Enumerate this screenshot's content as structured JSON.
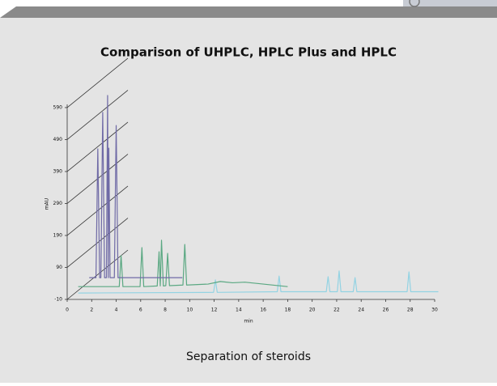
{
  "chart_data": {
    "type": "line",
    "title": "Comparison of UHPLC, HPLC Plus and HPLC",
    "caption": "Separation of steroids",
    "x_label": "min",
    "y_label": "mAU",
    "xlim": [
      0,
      30
    ],
    "xticks": [
      0,
      2,
      4,
      6,
      8,
      10,
      12,
      14,
      16,
      18,
      20,
      22,
      24,
      26,
      28,
      30
    ],
    "ylim": [
      -10,
      600
    ],
    "yticks": [
      -10,
      90,
      190,
      290,
      390,
      490,
      590
    ],
    "series": [
      {
        "color": "#93d3e3",
        "x": [
          0.9,
          11.95,
          12.1,
          12.25,
          17.15,
          17.3,
          17.45,
          21.15,
          21.3,
          21.45,
          22.05,
          22.2,
          22.35,
          23.35,
          23.5,
          23.65,
          27.75,
          27.9,
          28.05,
          30.3
        ],
        "values": [
          10,
          12,
          51,
          12,
          14,
          63,
          14,
          14,
          61,
          14,
          14,
          79,
          14,
          14,
          58,
          14,
          14,
          76,
          14,
          14
        ]
      },
      {
        "color": "#5aa882",
        "x": [
          0.9,
          4.25,
          4.4,
          4.55,
          5.95,
          6.1,
          6.25,
          7.35,
          7.5,
          7.6,
          7.7,
          7.85,
          8.05,
          8.2,
          8.35,
          9.45,
          9.6,
          9.75,
          11.5,
          12.5,
          13.5,
          14.5,
          18.0
        ],
        "values": [
          30,
          30,
          127,
          30,
          30,
          152,
          30,
          32,
          139,
          32,
          175,
          32,
          33,
          134,
          33,
          35,
          162,
          35,
          38,
          46,
          42,
          44,
          30
        ]
      },
      {
        "color": "#6f6aa6",
        "x": [
          1.8,
          2.35,
          2.5,
          2.65,
          2.75,
          2.9,
          3.05,
          3.2,
          3.3,
          3.35,
          3.4,
          3.5,
          3.85,
          4.0,
          4.15,
          9.4
        ],
        "values": [
          58,
          58,
          461,
          58,
          58,
          575,
          58,
          58,
          628,
          58,
          463,
          58,
          58,
          534,
          58,
          58
        ]
      }
    ]
  }
}
